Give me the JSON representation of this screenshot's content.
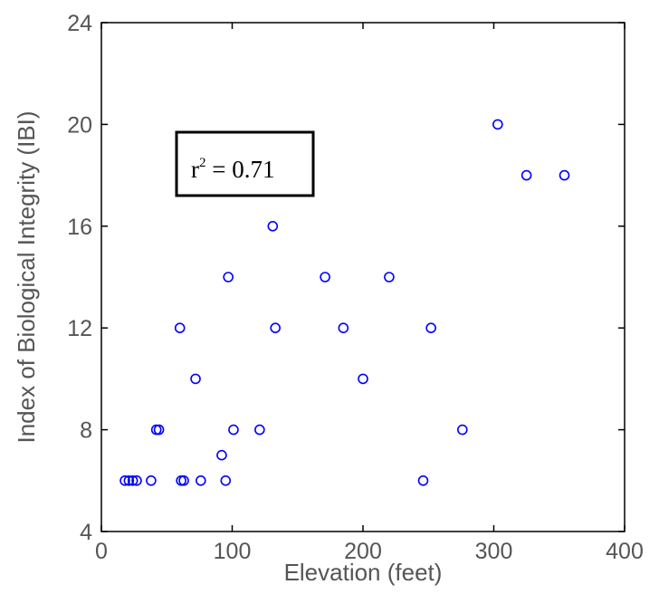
{
  "chart_data": {
    "type": "scatter",
    "title": "",
    "xlabel": "Elevation (feet)",
    "ylabel": "Index of Biological Integrity (IBI)",
    "xlim": [
      0,
      400
    ],
    "ylim": [
      4,
      24
    ],
    "xticks": [
      0,
      100,
      200,
      300,
      400
    ],
    "yticks": [
      4,
      8,
      12,
      16,
      20,
      24
    ],
    "grid": false,
    "marker": "open-circle",
    "marker_color": "#0000ff",
    "annotation": {
      "base": "r",
      "superscript": "2",
      "rest": " = 0.71"
    },
    "points": [
      {
        "x": 18,
        "y": 6
      },
      {
        "x": 21,
        "y": 6
      },
      {
        "x": 24,
        "y": 6
      },
      {
        "x": 27,
        "y": 6
      },
      {
        "x": 38,
        "y": 6
      },
      {
        "x": 61,
        "y": 6
      },
      {
        "x": 63,
        "y": 6
      },
      {
        "x": 76,
        "y": 6
      },
      {
        "x": 95,
        "y": 6
      },
      {
        "x": 246,
        "y": 6
      },
      {
        "x": 92,
        "y": 7
      },
      {
        "x": 42,
        "y": 8
      },
      {
        "x": 44,
        "y": 8
      },
      {
        "x": 101,
        "y": 8
      },
      {
        "x": 121,
        "y": 8
      },
      {
        "x": 276,
        "y": 8
      },
      {
        "x": 72,
        "y": 10
      },
      {
        "x": 200,
        "y": 10
      },
      {
        "x": 60,
        "y": 12
      },
      {
        "x": 133,
        "y": 12
      },
      {
        "x": 185,
        "y": 12
      },
      {
        "x": 252,
        "y": 12
      },
      {
        "x": 97,
        "y": 14
      },
      {
        "x": 171,
        "y": 14
      },
      {
        "x": 220,
        "y": 14
      },
      {
        "x": 131,
        "y": 16
      },
      {
        "x": 325,
        "y": 18
      },
      {
        "x": 354,
        "y": 18
      },
      {
        "x": 303,
        "y": 20
      }
    ]
  }
}
